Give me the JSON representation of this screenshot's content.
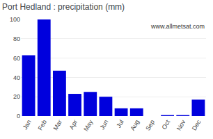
{
  "chart_data": {
    "type": "bar",
    "title": "Port Hedland : precipitation (mm)",
    "categories": [
      "Jan",
      "Feb",
      "Mar",
      "Apr",
      "May",
      "Jun",
      "Jul",
      "Aug",
      "Sep",
      "Oct",
      "Nov",
      "Dec"
    ],
    "values": [
      63,
      100,
      47,
      23,
      25,
      20,
      8,
      8,
      0,
      1,
      1,
      17
    ],
    "color": "#0000dd",
    "ylim": [
      0,
      100
    ],
    "yticks": [
      0,
      20,
      40,
      60,
      80,
      100
    ],
    "grid": true,
    "annotations": [
      "www.allmetsat.com"
    ]
  }
}
